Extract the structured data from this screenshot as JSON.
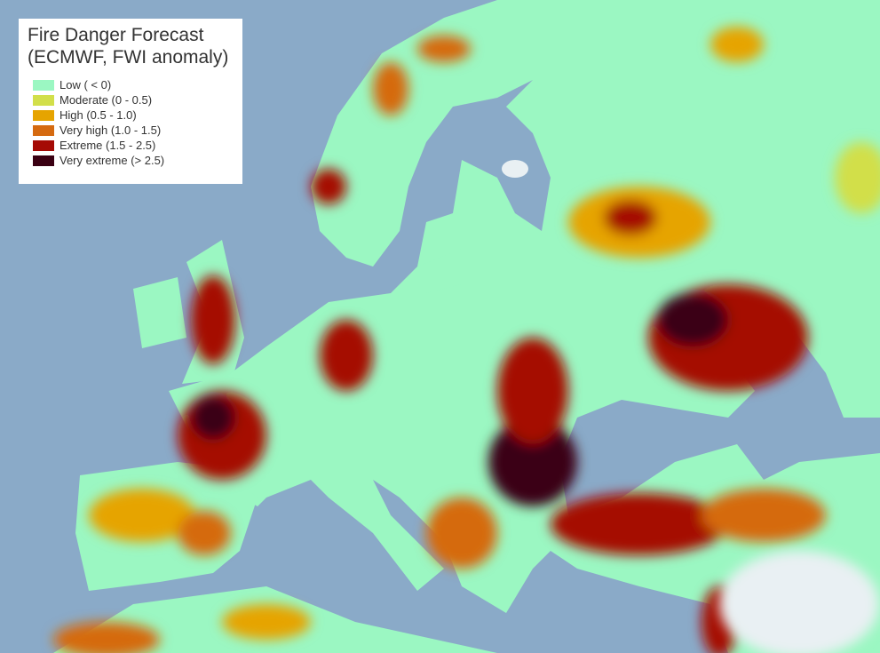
{
  "title": [
    "Fire Danger Forecast",
    "(ECMWF, FWI anomaly)"
  ],
  "legend": [
    {
      "label": "Low ( < 0)",
      "color": "#9bf7c2"
    },
    {
      "label": "Moderate (0 - 0.5)",
      "color": "#d2df4a"
    },
    {
      "label": "High (0.5 - 1.0)",
      "color": "#e6a400"
    },
    {
      "label": "Very high (1.0 - 1.5)",
      "color": "#d56a10"
    },
    {
      "label": "Extreme (1.5 - 2.5)",
      "color": "#a50a05"
    },
    {
      "label": "Very extreme (> 2.5)",
      "color": "#3a0012"
    }
  ]
}
